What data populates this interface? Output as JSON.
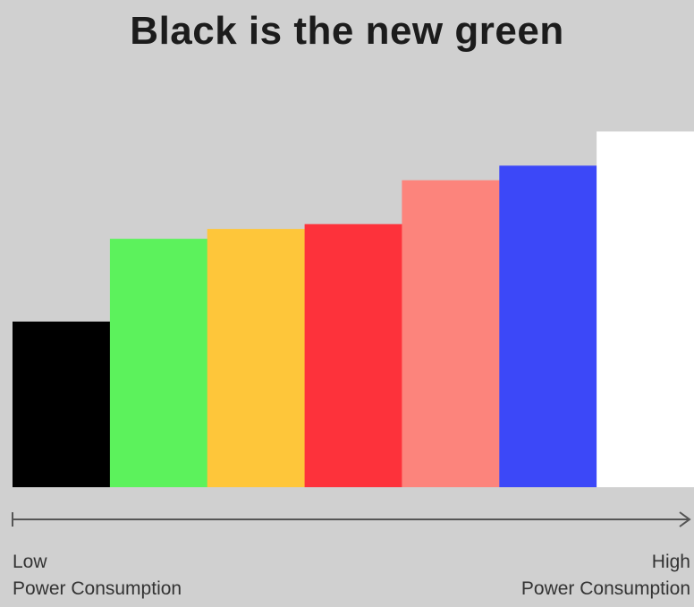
{
  "chart_data": {
    "type": "bar",
    "title": "Black is the new green",
    "categories": [
      "Black",
      "Green",
      "Yellow",
      "Red",
      "Pink",
      "Blue",
      "White"
    ],
    "values": [
      34,
      51,
      53,
      54,
      63,
      66,
      73
    ],
    "colors": [
      "#000000",
      "#5cf25c",
      "#fec63a",
      "#fd323b",
      "#fc847c",
      "#3c48f8",
      "#ffffff"
    ],
    "ylim": [
      0,
      100
    ],
    "grid": false,
    "xaxis": {
      "low_label": "Low",
      "low_sublabel": "Power Consumption",
      "high_label": "High",
      "high_sublabel": "Power Consumption"
    }
  }
}
